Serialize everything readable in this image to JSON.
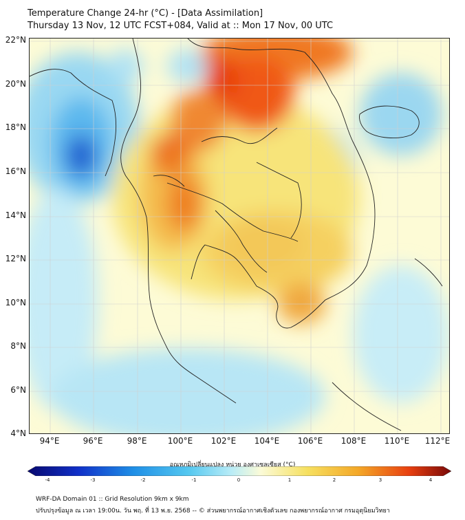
{
  "title_line1": "Temperature Change 24-hr (°C) - [Data Assimilation]",
  "title_line2": "Thursday 13 Nov, 12 UTC FCST+084, Valid at :: Mon 17 Nov, 00 UTC",
  "lat_labels": [
    "22°N",
    "20°N",
    "18°N",
    "16°N",
    "14°N",
    "12°N",
    "10°N",
    "8°N",
    "6°N",
    "4°N"
  ],
  "lon_labels": [
    "94°E",
    "96°E",
    "98°E",
    "100°E",
    "102°E",
    "104°E",
    "106°E",
    "108°E",
    "110°E",
    "112°E"
  ],
  "colorbar": {
    "label": "อุณหภูมิเปลี่ยนแปลง หน่วย องศาเซลเซียส (°C)",
    "ticks": [
      "-4",
      "-3",
      "-2",
      "-1",
      "0",
      "1",
      "2",
      "3",
      "4"
    ],
    "colors": [
      "#08086e",
      "#1030c8",
      "#1f8fe6",
      "#55c8f0",
      "#b8ecf7",
      "#fbfbd8",
      "#f6e060",
      "#f4a828",
      "#e84010",
      "#780808"
    ]
  },
  "footer_line1": "WRF-DA Domain 01 :: Grid Resolution 9km x 9km",
  "footer_line2": "ปรับปรุงข้อมูล ณ เวลา 19:00น. วัน พฤ. ที่ 13 พ.ย. 2568 -- © ส่วนพยากรณ์อากาศเชิงตัวเลข กองพยากรณ์อากาศ กรมอุตุนิยมวิทยา"
}
